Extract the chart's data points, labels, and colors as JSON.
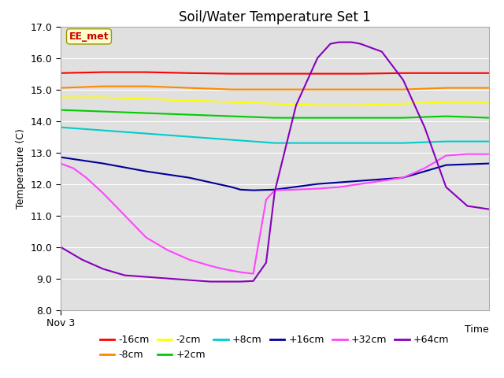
{
  "title": "Soil/Water Temperature Set 1",
  "xlabel": "Time",
  "ylabel": "Temperature (C)",
  "ylim": [
    8.0,
    17.0
  ],
  "yticks": [
    8.0,
    9.0,
    10.0,
    11.0,
    12.0,
    13.0,
    14.0,
    15.0,
    16.0,
    17.0
  ],
  "xlabel_start": "Nov 3",
  "annotation_label": "EE_met",
  "annotation_color": "#cc0000",
  "annotation_bg": "#ffffcc",
  "annotation_edge": "#999900",
  "background_color": "#e0e0e0",
  "series_order": [
    "-16cm",
    "-8cm",
    "-2cm",
    "+2cm",
    "+8cm",
    "+16cm",
    "+32cm",
    "+64cm"
  ],
  "series": {
    "-16cm": {
      "color": "#ff0000",
      "lw": 1.5,
      "x": [
        0,
        0.1,
        0.2,
        0.3,
        0.4,
        0.5,
        0.6,
        0.7,
        0.8,
        0.9,
        1.0
      ],
      "y": [
        15.52,
        15.55,
        15.55,
        15.52,
        15.5,
        15.5,
        15.5,
        15.5,
        15.52,
        15.52,
        15.52
      ]
    },
    "-8cm": {
      "color": "#ff8800",
      "lw": 1.5,
      "x": [
        0,
        0.1,
        0.2,
        0.3,
        0.4,
        0.5,
        0.6,
        0.7,
        0.8,
        0.9,
        1.0
      ],
      "y": [
        15.05,
        15.1,
        15.1,
        15.05,
        15.0,
        15.0,
        15.0,
        15.0,
        15.0,
        15.05,
        15.05
      ]
    },
    "-2cm": {
      "color": "#ffff00",
      "lw": 1.5,
      "x": [
        0,
        0.1,
        0.2,
        0.3,
        0.4,
        0.5,
        0.6,
        0.7,
        0.8,
        0.9,
        1.0
      ],
      "y": [
        14.75,
        14.75,
        14.7,
        14.65,
        14.6,
        14.55,
        14.5,
        14.5,
        14.55,
        14.6,
        14.6
      ]
    },
    "+2cm": {
      "color": "#00cc00",
      "lw": 1.5,
      "x": [
        0,
        0.1,
        0.2,
        0.3,
        0.4,
        0.5,
        0.6,
        0.7,
        0.8,
        0.9,
        1.0
      ],
      "y": [
        14.35,
        14.3,
        14.25,
        14.2,
        14.15,
        14.1,
        14.1,
        14.1,
        14.1,
        14.15,
        14.1
      ]
    },
    "+8cm": {
      "color": "#00cccc",
      "lw": 1.5,
      "x": [
        0,
        0.1,
        0.2,
        0.3,
        0.4,
        0.5,
        0.6,
        0.7,
        0.8,
        0.9,
        1.0
      ],
      "y": [
        13.8,
        13.7,
        13.6,
        13.5,
        13.4,
        13.3,
        13.3,
        13.3,
        13.3,
        13.35,
        13.35
      ]
    },
    "+16cm": {
      "color": "#000099",
      "lw": 1.5,
      "x": [
        0,
        0.05,
        0.1,
        0.2,
        0.3,
        0.35,
        0.4,
        0.42,
        0.45,
        0.5,
        0.6,
        0.7,
        0.8,
        0.9,
        1.0
      ],
      "y": [
        12.85,
        12.75,
        12.65,
        12.4,
        12.2,
        12.05,
        11.9,
        11.82,
        11.8,
        11.82,
        12.0,
        12.1,
        12.2,
        12.6,
        12.65
      ]
    },
    "+32cm": {
      "color": "#ff44ff",
      "lw": 1.5,
      "x": [
        0,
        0.03,
        0.06,
        0.1,
        0.15,
        0.2,
        0.25,
        0.3,
        0.35,
        0.38,
        0.42,
        0.45,
        0.48,
        0.5,
        0.55,
        0.6,
        0.65,
        0.7,
        0.75,
        0.8,
        0.85,
        0.9,
        0.95,
        1.0
      ],
      "y": [
        12.65,
        12.5,
        12.2,
        11.7,
        11.0,
        10.3,
        9.9,
        9.6,
        9.4,
        9.3,
        9.2,
        9.15,
        11.5,
        11.8,
        11.82,
        11.85,
        11.9,
        12.0,
        12.1,
        12.2,
        12.5,
        12.9,
        12.95,
        12.95
      ]
    },
    "+64cm": {
      "color": "#8800bb",
      "lw": 1.5,
      "x": [
        0,
        0.05,
        0.1,
        0.15,
        0.2,
        0.25,
        0.3,
        0.35,
        0.4,
        0.42,
        0.45,
        0.48,
        0.5,
        0.55,
        0.6,
        0.63,
        0.65,
        0.68,
        0.7,
        0.75,
        0.8,
        0.85,
        0.9,
        0.95,
        1.0
      ],
      "y": [
        10.0,
        9.6,
        9.3,
        9.1,
        9.05,
        9.0,
        8.95,
        8.9,
        8.9,
        8.9,
        8.92,
        9.5,
        11.75,
        14.5,
        16.0,
        16.45,
        16.5,
        16.5,
        16.45,
        16.2,
        15.3,
        13.8,
        11.9,
        11.3,
        11.2
      ]
    }
  },
  "grid_color": "#ffffff",
  "title_fontsize": 12,
  "label_fontsize": 9,
  "tick_fontsize": 9,
  "legend_fontsize": 9
}
